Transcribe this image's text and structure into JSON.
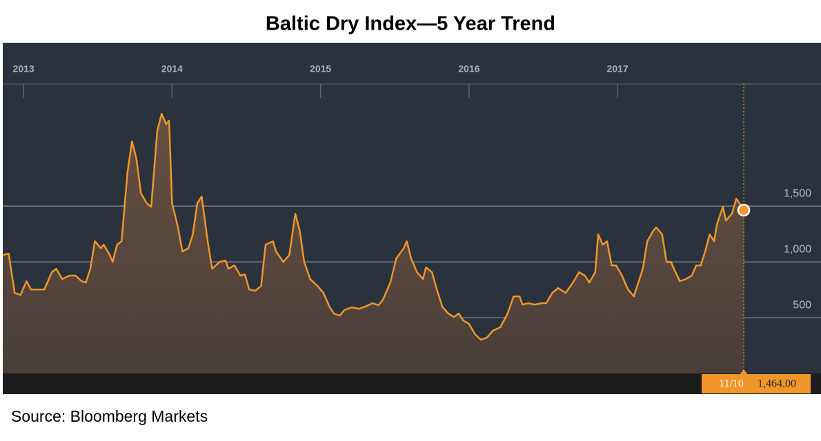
{
  "chart_data": {
    "type": "line",
    "title": "Baltic Dry Index—5 Year Trend",
    "source": "Source: Bloomberg Markets",
    "x": [
      2012.86,
      2012.9,
      2012.94,
      2012.98,
      2013.02,
      2013.05,
      2013.1,
      2013.14,
      2013.19,
      2013.22,
      2013.26,
      2013.31,
      2013.35,
      2013.39,
      2013.42,
      2013.45,
      2013.48,
      2013.52,
      2013.54,
      2013.58,
      2013.6,
      2013.63,
      2013.66,
      2013.7,
      2013.73,
      2013.76,
      2013.79,
      2013.83,
      2013.86,
      2013.9,
      2013.93,
      2013.96,
      2013.98,
      2014.0,
      2014.04,
      2014.07,
      2014.11,
      2014.14,
      2014.17,
      2014.2,
      2014.24,
      2014.27,
      2014.32,
      2014.36,
      2014.38,
      2014.42,
      2014.46,
      2014.49,
      2014.52,
      2014.56,
      2014.6,
      2014.63,
      2014.68,
      2014.7,
      2014.75,
      2014.79,
      2014.83,
      2014.86,
      2014.89,
      2014.93,
      2014.98,
      2015.02,
      2015.06,
      2015.09,
      2015.13,
      2015.16,
      2015.21,
      2015.26,
      2015.3,
      2015.35,
      2015.39,
      2015.42,
      2015.47,
      2015.51,
      2015.56,
      2015.58,
      2015.61,
      2015.65,
      2015.69,
      2015.71,
      2015.75,
      2015.78,
      2015.82,
      2015.86,
      2015.9,
      2015.93,
      2015.96,
      2016.0,
      2016.04,
      2016.08,
      2016.12,
      2016.16,
      2016.21,
      2016.26,
      2016.3,
      2016.34,
      2016.36,
      2016.4,
      2016.44,
      2016.49,
      2016.52,
      2016.56,
      2016.6,
      2016.65,
      2016.7,
      2016.74,
      2016.78,
      2016.81,
      2016.85,
      2016.87,
      2016.9,
      2016.93,
      2016.96,
      2016.99,
      2017.03,
      2017.07,
      2017.11,
      2017.14,
      2017.17,
      2017.2,
      2017.24,
      2017.26,
      2017.3,
      2017.33,
      2017.36,
      2017.39,
      2017.42,
      2017.46,
      2017.5,
      2017.53,
      2017.56,
      2017.59,
      2017.62,
      2017.65,
      2017.67,
      2017.71,
      2017.73,
      2017.77,
      2017.8,
      2017.82,
      2017.85
    ],
    "values": [
      1062,
      1074,
      722,
      704,
      827,
      753,
      753,
      753,
      907,
      938,
      846,
      877,
      877,
      827,
      815,
      938,
      1185,
      1123,
      1154,
      1062,
      1000,
      1154,
      1185,
      1802,
      2080,
      1926,
      1617,
      1525,
      1494,
      2173,
      2327,
      2235,
      2265,
      1525,
      1309,
      1093,
      1123,
      1247,
      1525,
      1586,
      1185,
      938,
      1000,
      1012,
      938,
      969,
      877,
      889,
      753,
      741,
      784,
      1154,
      1185,
      1093,
      1000,
      1062,
      1432,
      1278,
      1000,
      846,
      784,
      722,
      599,
      537,
      519,
      568,
      593,
      580,
      599,
      630,
      611,
      660,
      815,
      1031,
      1123,
      1185,
      1031,
      907,
      846,
      951,
      907,
      765,
      599,
      537,
      506,
      537,
      475,
      444,
      352,
      302,
      321,
      383,
      414,
      537,
      691,
      691,
      617,
      630,
      617,
      630,
      630,
      722,
      765,
      722,
      815,
      907,
      877,
      815,
      907,
      1247,
      1154,
      1185,
      969,
      969,
      877,
      753,
      691,
      815,
      938,
      1185,
      1278,
      1309,
      1247,
      1000,
      1000,
      907,
      827,
      846,
      877,
      969,
      969,
      1093,
      1247,
      1185,
      1340,
      1494,
      1370,
      1432,
      1568,
      1525,
      1464
    ],
    "color": "#f0962a",
    "xlim": [
      2012.86,
      2018.37
    ],
    "xticks": [
      2013,
      2014,
      2015,
      2016,
      2017
    ],
    "ylim": [
      0,
      2600
    ],
    "yticks": [
      500,
      {
        "value": 1000,
        "label": "1,000"
      },
      {
        "value": 1500,
        "label": "1,500"
      }
    ],
    "grid": true,
    "current": {
      "date": "11/10",
      "label": "1,464.00"
    }
  }
}
